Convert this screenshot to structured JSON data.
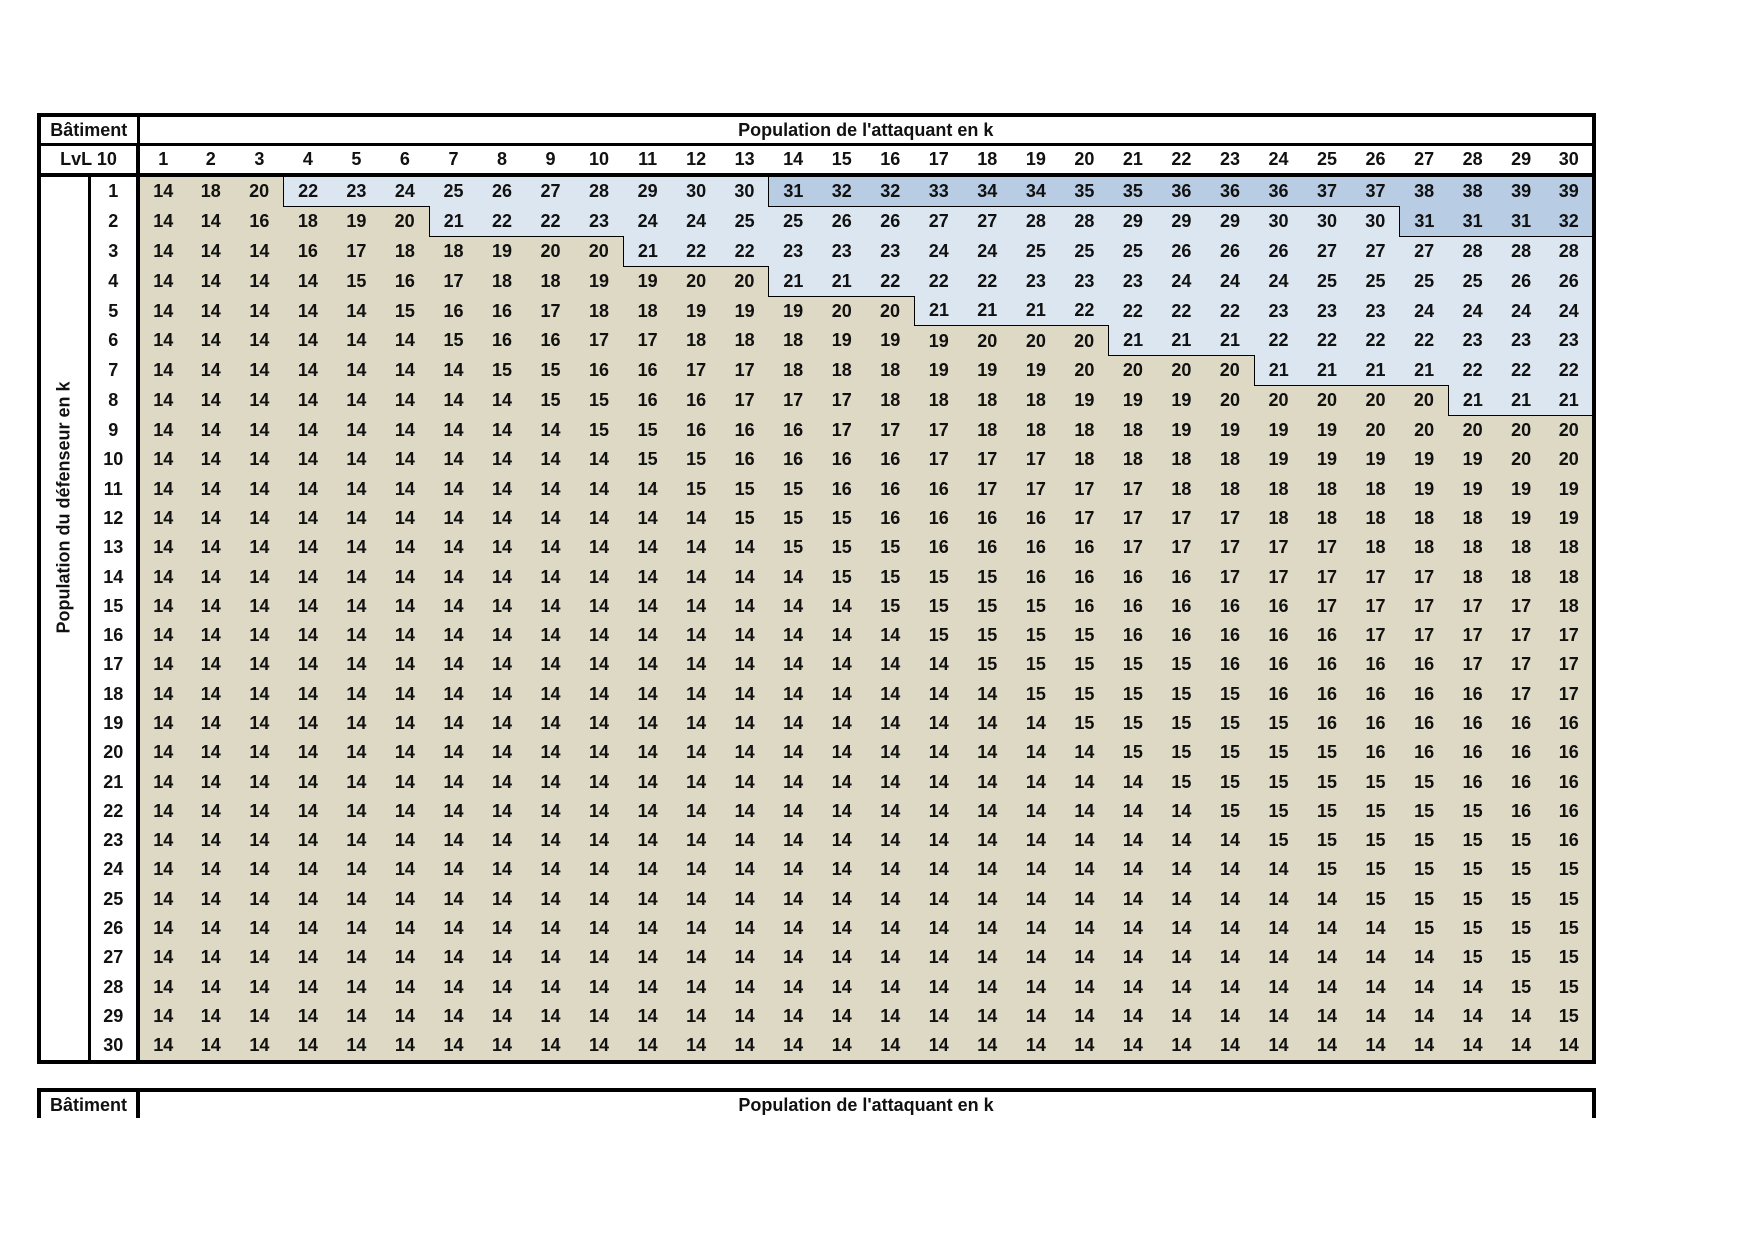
{
  "header": {
    "corner_top": "Bâtiment",
    "corner_bottom": "LvL 10",
    "title": "Population de l'attaquant en k",
    "columns": [
      1,
      2,
      3,
      4,
      5,
      6,
      7,
      8,
      9,
      10,
      11,
      12,
      13,
      14,
      15,
      16,
      17,
      18,
      19,
      20,
      21,
      22,
      23,
      24,
      25,
      26,
      27,
      28,
      29,
      30
    ]
  },
  "row_axis_label": "Population du défenseur en k",
  "rows": [
    {
      "label": 1,
      "values": [
        14,
        18,
        20,
        22,
        23,
        24,
        25,
        26,
        27,
        28,
        29,
        30,
        30,
        31,
        32,
        32,
        33,
        34,
        34,
        35,
        35,
        36,
        36,
        36,
        37,
        37,
        38,
        38,
        39,
        39
      ]
    },
    {
      "label": 2,
      "values": [
        14,
        14,
        16,
        18,
        19,
        20,
        21,
        22,
        22,
        23,
        24,
        24,
        25,
        25,
        26,
        26,
        27,
        27,
        28,
        28,
        29,
        29,
        29,
        30,
        30,
        30,
        31,
        31,
        31,
        32
      ]
    },
    {
      "label": 3,
      "values": [
        14,
        14,
        14,
        16,
        17,
        18,
        18,
        19,
        20,
        20,
        21,
        22,
        22,
        23,
        23,
        23,
        24,
        24,
        25,
        25,
        25,
        26,
        26,
        26,
        27,
        27,
        27,
        28,
        28,
        28
      ]
    },
    {
      "label": 4,
      "values": [
        14,
        14,
        14,
        14,
        15,
        16,
        17,
        18,
        18,
        19,
        19,
        20,
        20,
        21,
        21,
        22,
        22,
        22,
        23,
        23,
        23,
        24,
        24,
        24,
        25,
        25,
        25,
        25,
        26,
        26
      ]
    },
    {
      "label": 5,
      "values": [
        14,
        14,
        14,
        14,
        14,
        15,
        16,
        16,
        17,
        18,
        18,
        19,
        19,
        19,
        20,
        20,
        21,
        21,
        21,
        22,
        22,
        22,
        22,
        23,
        23,
        23,
        24,
        24,
        24,
        24
      ]
    },
    {
      "label": 6,
      "values": [
        14,
        14,
        14,
        14,
        14,
        14,
        15,
        16,
        16,
        17,
        17,
        18,
        18,
        18,
        19,
        19,
        19,
        20,
        20,
        20,
        21,
        21,
        21,
        22,
        22,
        22,
        22,
        23,
        23,
        23
      ]
    },
    {
      "label": 7,
      "values": [
        14,
        14,
        14,
        14,
        14,
        14,
        14,
        15,
        15,
        16,
        16,
        17,
        17,
        18,
        18,
        18,
        19,
        19,
        19,
        20,
        20,
        20,
        20,
        21,
        21,
        21,
        21,
        22,
        22,
        22
      ]
    },
    {
      "label": 8,
      "values": [
        14,
        14,
        14,
        14,
        14,
        14,
        14,
        14,
        15,
        15,
        16,
        16,
        17,
        17,
        17,
        18,
        18,
        18,
        18,
        19,
        19,
        19,
        20,
        20,
        20,
        20,
        20,
        21,
        21,
        21
      ]
    },
    {
      "label": 9,
      "values": [
        14,
        14,
        14,
        14,
        14,
        14,
        14,
        14,
        14,
        15,
        15,
        16,
        16,
        16,
        17,
        17,
        17,
        18,
        18,
        18,
        18,
        19,
        19,
        19,
        19,
        20,
        20,
        20,
        20,
        20
      ]
    },
    {
      "label": 10,
      "values": [
        14,
        14,
        14,
        14,
        14,
        14,
        14,
        14,
        14,
        14,
        15,
        15,
        16,
        16,
        16,
        16,
        17,
        17,
        17,
        18,
        18,
        18,
        18,
        19,
        19,
        19,
        19,
        19,
        20,
        20
      ]
    },
    {
      "label": 11,
      "values": [
        14,
        14,
        14,
        14,
        14,
        14,
        14,
        14,
        14,
        14,
        14,
        15,
        15,
        15,
        16,
        16,
        16,
        17,
        17,
        17,
        17,
        18,
        18,
        18,
        18,
        18,
        19,
        19,
        19,
        19
      ]
    },
    {
      "label": 12,
      "values": [
        14,
        14,
        14,
        14,
        14,
        14,
        14,
        14,
        14,
        14,
        14,
        14,
        15,
        15,
        15,
        16,
        16,
        16,
        16,
        17,
        17,
        17,
        17,
        18,
        18,
        18,
        18,
        18,
        19,
        19
      ]
    },
    {
      "label": 13,
      "values": [
        14,
        14,
        14,
        14,
        14,
        14,
        14,
        14,
        14,
        14,
        14,
        14,
        14,
        15,
        15,
        15,
        16,
        16,
        16,
        16,
        17,
        17,
        17,
        17,
        17,
        18,
        18,
        18,
        18,
        18
      ]
    },
    {
      "label": 14,
      "values": [
        14,
        14,
        14,
        14,
        14,
        14,
        14,
        14,
        14,
        14,
        14,
        14,
        14,
        14,
        15,
        15,
        15,
        15,
        16,
        16,
        16,
        16,
        17,
        17,
        17,
        17,
        17,
        18,
        18,
        18
      ]
    },
    {
      "label": 15,
      "values": [
        14,
        14,
        14,
        14,
        14,
        14,
        14,
        14,
        14,
        14,
        14,
        14,
        14,
        14,
        14,
        15,
        15,
        15,
        15,
        16,
        16,
        16,
        16,
        16,
        17,
        17,
        17,
        17,
        17,
        18
      ]
    },
    {
      "label": 16,
      "values": [
        14,
        14,
        14,
        14,
        14,
        14,
        14,
        14,
        14,
        14,
        14,
        14,
        14,
        14,
        14,
        14,
        15,
        15,
        15,
        15,
        16,
        16,
        16,
        16,
        16,
        17,
        17,
        17,
        17,
        17
      ]
    },
    {
      "label": 17,
      "values": [
        14,
        14,
        14,
        14,
        14,
        14,
        14,
        14,
        14,
        14,
        14,
        14,
        14,
        14,
        14,
        14,
        14,
        15,
        15,
        15,
        15,
        15,
        16,
        16,
        16,
        16,
        16,
        17,
        17,
        17
      ]
    },
    {
      "label": 18,
      "values": [
        14,
        14,
        14,
        14,
        14,
        14,
        14,
        14,
        14,
        14,
        14,
        14,
        14,
        14,
        14,
        14,
        14,
        14,
        15,
        15,
        15,
        15,
        15,
        16,
        16,
        16,
        16,
        16,
        17,
        17
      ]
    },
    {
      "label": 19,
      "values": [
        14,
        14,
        14,
        14,
        14,
        14,
        14,
        14,
        14,
        14,
        14,
        14,
        14,
        14,
        14,
        14,
        14,
        14,
        14,
        15,
        15,
        15,
        15,
        15,
        16,
        16,
        16,
        16,
        16,
        16
      ]
    },
    {
      "label": 20,
      "values": [
        14,
        14,
        14,
        14,
        14,
        14,
        14,
        14,
        14,
        14,
        14,
        14,
        14,
        14,
        14,
        14,
        14,
        14,
        14,
        14,
        15,
        15,
        15,
        15,
        15,
        16,
        16,
        16,
        16,
        16
      ]
    },
    {
      "label": 21,
      "values": [
        14,
        14,
        14,
        14,
        14,
        14,
        14,
        14,
        14,
        14,
        14,
        14,
        14,
        14,
        14,
        14,
        14,
        14,
        14,
        14,
        14,
        15,
        15,
        15,
        15,
        15,
        15,
        16,
        16,
        16
      ]
    },
    {
      "label": 22,
      "values": [
        14,
        14,
        14,
        14,
        14,
        14,
        14,
        14,
        14,
        14,
        14,
        14,
        14,
        14,
        14,
        14,
        14,
        14,
        14,
        14,
        14,
        14,
        15,
        15,
        15,
        15,
        15,
        15,
        16,
        16
      ]
    },
    {
      "label": 23,
      "values": [
        14,
        14,
        14,
        14,
        14,
        14,
        14,
        14,
        14,
        14,
        14,
        14,
        14,
        14,
        14,
        14,
        14,
        14,
        14,
        14,
        14,
        14,
        14,
        15,
        15,
        15,
        15,
        15,
        15,
        16
      ]
    },
    {
      "label": 24,
      "values": [
        14,
        14,
        14,
        14,
        14,
        14,
        14,
        14,
        14,
        14,
        14,
        14,
        14,
        14,
        14,
        14,
        14,
        14,
        14,
        14,
        14,
        14,
        14,
        14,
        15,
        15,
        15,
        15,
        15,
        15
      ]
    },
    {
      "label": 25,
      "values": [
        14,
        14,
        14,
        14,
        14,
        14,
        14,
        14,
        14,
        14,
        14,
        14,
        14,
        14,
        14,
        14,
        14,
        14,
        14,
        14,
        14,
        14,
        14,
        14,
        14,
        15,
        15,
        15,
        15,
        15
      ]
    },
    {
      "label": 26,
      "values": [
        14,
        14,
        14,
        14,
        14,
        14,
        14,
        14,
        14,
        14,
        14,
        14,
        14,
        14,
        14,
        14,
        14,
        14,
        14,
        14,
        14,
        14,
        14,
        14,
        14,
        14,
        15,
        15,
        15,
        15
      ]
    },
    {
      "label": 27,
      "values": [
        14,
        14,
        14,
        14,
        14,
        14,
        14,
        14,
        14,
        14,
        14,
        14,
        14,
        14,
        14,
        14,
        14,
        14,
        14,
        14,
        14,
        14,
        14,
        14,
        14,
        14,
        14,
        15,
        15,
        15
      ]
    },
    {
      "label": 28,
      "values": [
        14,
        14,
        14,
        14,
        14,
        14,
        14,
        14,
        14,
        14,
        14,
        14,
        14,
        14,
        14,
        14,
        14,
        14,
        14,
        14,
        14,
        14,
        14,
        14,
        14,
        14,
        14,
        14,
        15,
        15
      ]
    },
    {
      "label": 29,
      "values": [
        14,
        14,
        14,
        14,
        14,
        14,
        14,
        14,
        14,
        14,
        14,
        14,
        14,
        14,
        14,
        14,
        14,
        14,
        14,
        14,
        14,
        14,
        14,
        14,
        14,
        14,
        14,
        14,
        14,
        15
      ]
    },
    {
      "label": 30,
      "values": [
        14,
        14,
        14,
        14,
        14,
        14,
        14,
        14,
        14,
        14,
        14,
        14,
        14,
        14,
        14,
        14,
        14,
        14,
        14,
        14,
        14,
        14,
        14,
        14,
        14,
        14,
        14,
        14,
        14,
        14
      ]
    }
  ],
  "second_table": {
    "corner_top": "Bâtiment",
    "title": "Population de l'attaquant en k"
  }
}
